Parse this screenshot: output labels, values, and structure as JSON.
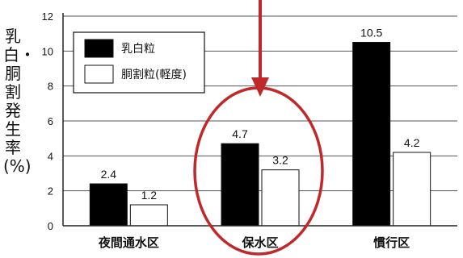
{
  "chart_data": {
    "type": "bar",
    "title": "",
    "xlabel": "",
    "ylabel": "乳白・胴割発生率(%)",
    "ylim": [
      0,
      12
    ],
    "yticks": [
      0,
      2,
      4,
      6,
      8,
      10,
      12
    ],
    "grid": true,
    "legend_position": "top-left",
    "categories": [
      "夜間通水区",
      "保水区",
      "慣行区"
    ],
    "series": [
      {
        "name": "乳白粒",
        "values": [
          2.4,
          4.7,
          10.5
        ],
        "color": "#000000"
      },
      {
        "name": "胴割粒(軽度)",
        "values": [
          1.2,
          3.2,
          4.2
        ],
        "color": "#ffffff"
      }
    ],
    "data_labels": [
      [
        "2.4",
        "4.7",
        "10.5"
      ],
      [
        "1.2",
        "3.2",
        "4.2"
      ]
    ],
    "annotation": {
      "type": "arrow-and-ellipse",
      "target_category": "保水区",
      "color": "#c0282a"
    }
  }
}
